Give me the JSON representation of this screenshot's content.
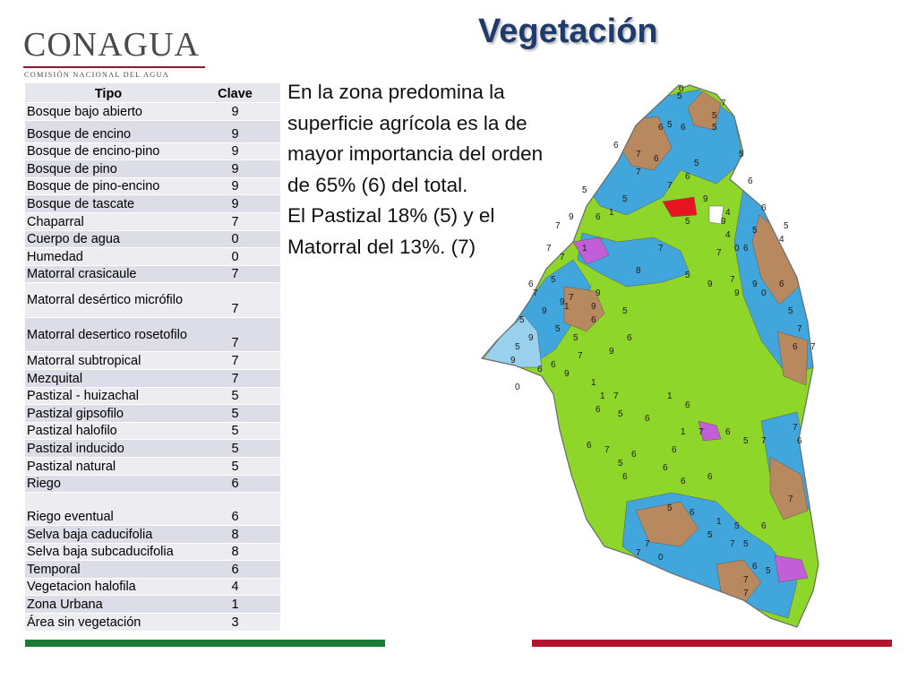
{
  "logo": {
    "name": "CONAGUA",
    "subtitle": "COMISIÓN NACIONAL DEL AGUA"
  },
  "title": "Vegetación",
  "table": {
    "headers": [
      "Tipo",
      "Clave"
    ],
    "rows": [
      [
        "Bosque bajo abierto",
        "9"
      ],
      [
        "Bosque de encino",
        "9"
      ],
      [
        "Bosque de encino-pino",
        "9"
      ],
      [
        "Bosque de pino",
        "9"
      ],
      [
        "Bosque de pino-encino",
        "9"
      ],
      [
        "Bosque de tascate",
        "9"
      ],
      [
        "Chaparral",
        "7"
      ],
      [
        "Cuerpo de agua",
        "0"
      ],
      [
        "Humedad",
        "0"
      ],
      [
        "Matorral crasicaule",
        "7"
      ],
      [
        "Matorral desértico micrófilo",
        "7"
      ],
      [
        "Matorral desertico rosetofilo",
        "7"
      ],
      [
        "Matorral subtropical",
        "7"
      ],
      [
        "Mezquital",
        "7"
      ],
      [
        "Pastizal - huizachal",
        "5"
      ],
      [
        "Pastizal gipsofilo",
        "5"
      ],
      [
        "Pastizal halofilo",
        "5"
      ],
      [
        "Pastizal inducido",
        "5"
      ],
      [
        "Pastizal natural",
        "5"
      ],
      [
        "Riego",
        "6"
      ],
      [
        "Riego eventual",
        "6"
      ],
      [
        "Selva baja caducifolia",
        "8"
      ],
      [
        "Selva baja subcaducifolia",
        "8"
      ],
      [
        "Temporal",
        "6"
      ],
      [
        "Vegetacion halofila",
        "4"
      ],
      [
        "Zona Urbana",
        "1"
      ],
      [
        "Área sin vegetación",
        "3"
      ]
    ]
  },
  "description": {
    "paragraph1": "En la zona predomina la superficie agrícola es la de mayor importancia del orden de 65%  (6) del total.",
    "paragraph2": "El Pastizal 18%  (5) y el Matorral del 13%. (7)"
  },
  "map": {
    "colors": {
      "agricultural": "#8fd62a",
      "grassland": "#41a6dc",
      "shrubland": "#b8885f",
      "urban": "#c25ed8",
      "water": "#99d0ee",
      "saline": "#e8141f",
      "bare": "#ffffff"
    },
    "labels": [
      "0",
      "5",
      "7",
      "5",
      "5",
      "6",
      "6",
      "5",
      "6",
      "7",
      "6",
      "5",
      "5",
      "6",
      "7",
      "6",
      "7",
      "5",
      "5",
      "1",
      "6",
      "7",
      "9",
      "6",
      "5",
      "5",
      "4",
      "0",
      "7",
      "7",
      "4",
      "6",
      "5",
      "9",
      "9",
      "1",
      "7",
      "6",
      "7",
      "5",
      "7",
      "9",
      "9",
      "9",
      "5",
      "6",
      "8",
      "7",
      "5",
      "9",
      "7",
      "6",
      "9",
      "5",
      "9",
      "5",
      "9",
      "6",
      "1",
      "7",
      "5",
      "6",
      "9",
      "7",
      "0",
      "1",
      "5",
      "9",
      "4",
      "0",
      "9",
      "9",
      "6",
      "5",
      "7",
      "6",
      "7",
      "5",
      "6",
      "1",
      "6",
      "1",
      "7",
      "6",
      "6",
      "1",
      "6",
      "7",
      "6",
      "5",
      "6",
      "6",
      "6",
      "6",
      "6",
      "5",
      "7",
      "7",
      "6",
      "7",
      "6",
      "5",
      "5",
      "7",
      "7",
      "7",
      "0",
      "7",
      "5",
      "6",
      "5",
      "1",
      "7",
      "5",
      "6"
    ]
  },
  "footer": {
    "left_color": "#1b7a36",
    "right_color": "#b3132d"
  }
}
